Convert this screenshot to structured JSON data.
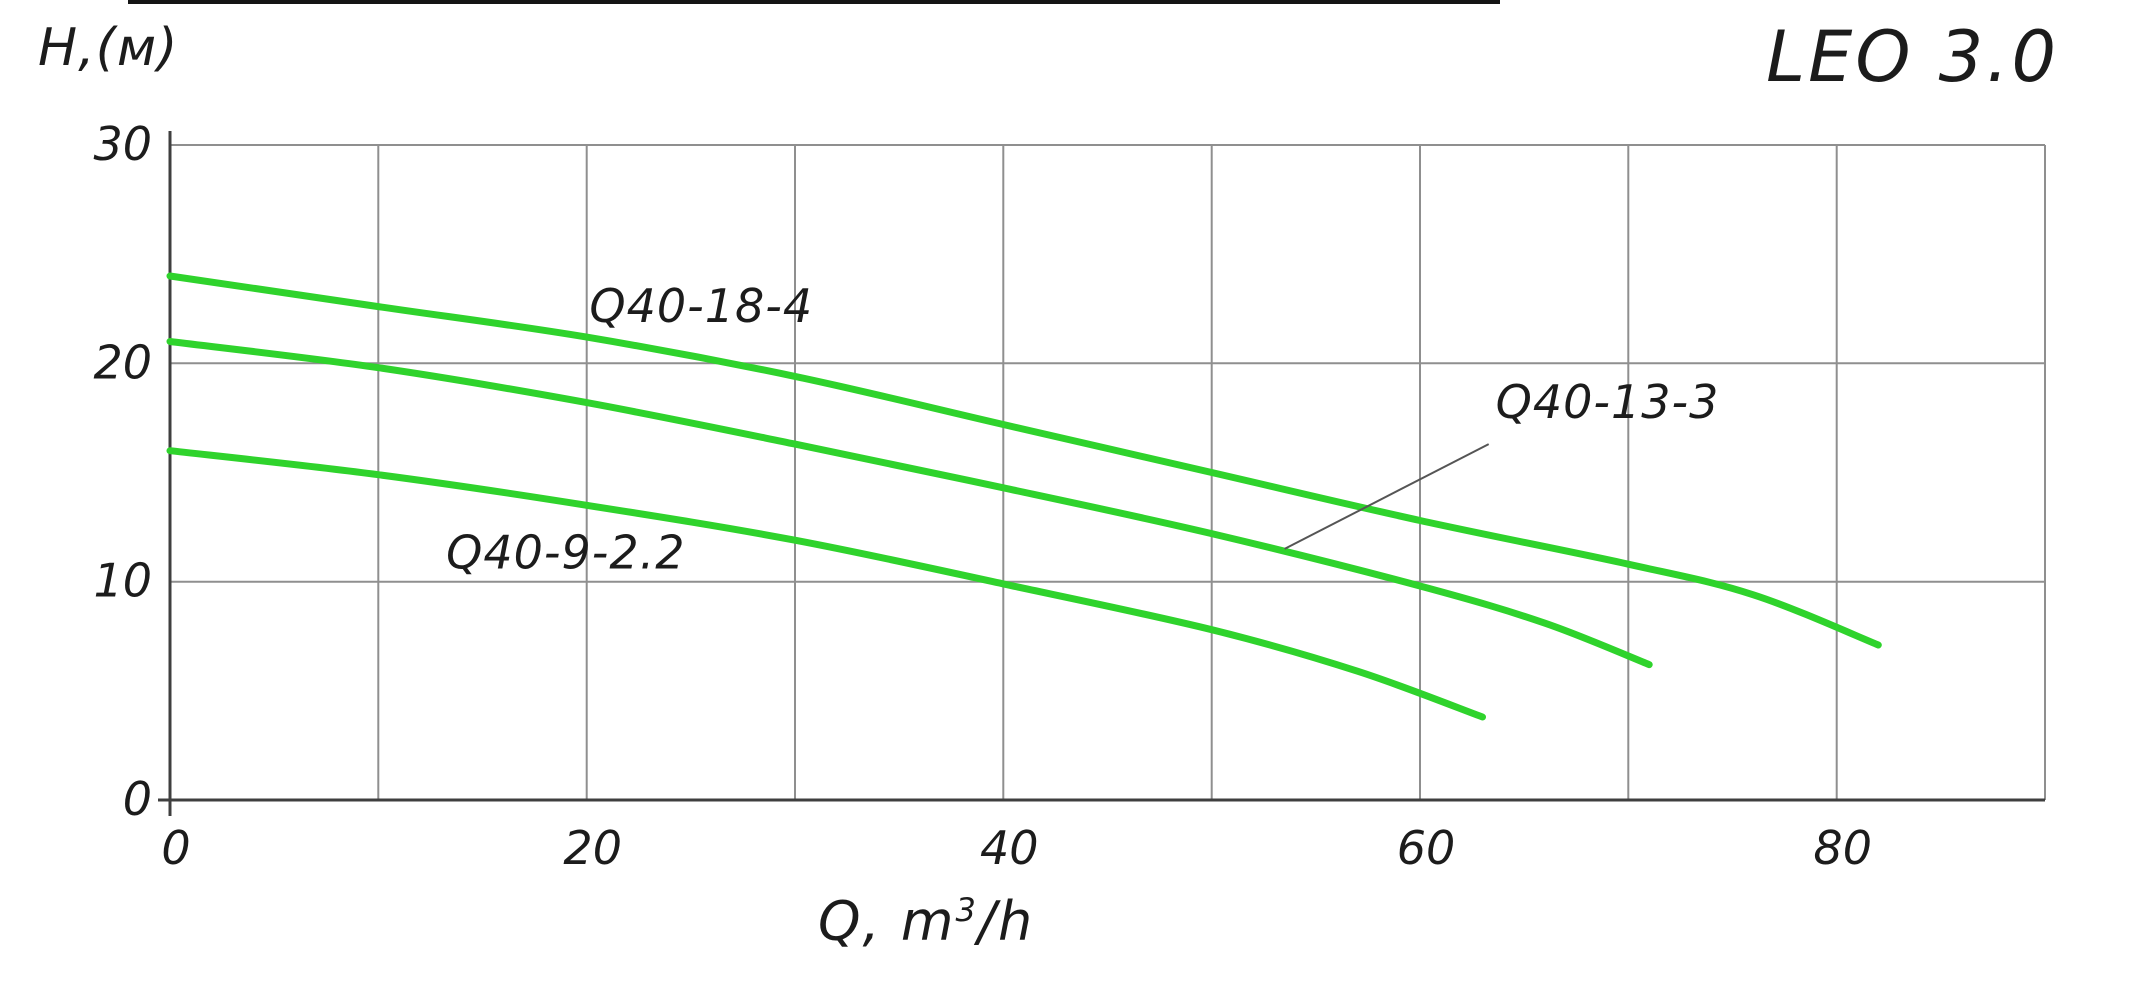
{
  "page": {
    "background": "#ffffff",
    "artifact_color": "#151515"
  },
  "chart_data": {
    "type": "line",
    "title": "LEO 3.0",
    "ylabel": "H,(м)",
    "xlabel_parts": {
      "base": "Q, m",
      "sup": "3",
      "rest": "/h"
    },
    "xlim": [
      0,
      90
    ],
    "ylim": [
      0,
      30
    ],
    "grid": true,
    "x_gridline_step": 10,
    "y_gridline_step": 10,
    "x_ticks": [
      {
        "value": 0,
        "label": "0"
      },
      {
        "value": 20,
        "label": "20"
      },
      {
        "value": 40,
        "label": "40"
      },
      {
        "value": 60,
        "label": "60"
      },
      {
        "value": 80,
        "label": "80"
      }
    ],
    "y_ticks": [
      {
        "value": 0,
        "label": "0"
      },
      {
        "value": 10,
        "label": "10"
      },
      {
        "value": 20,
        "label": "20"
      },
      {
        "value": 30,
        "label": "30"
      }
    ],
    "curve_color": "#2fd32c",
    "grid_color": "#8f8f8f",
    "axis_color": "#3f3f3f",
    "legend_position": "inline-labels",
    "series": [
      {
        "name": "Q40-18-4",
        "points": [
          [
            0,
            24
          ],
          [
            10,
            22.6
          ],
          [
            20,
            21.2
          ],
          [
            30,
            19.4
          ],
          [
            40,
            17.2
          ],
          [
            50,
            15.0
          ],
          [
            60,
            12.8
          ],
          [
            70,
            10.8
          ],
          [
            76,
            9.4
          ],
          [
            82,
            7.1
          ]
        ],
        "label": {
          "text": "Q40-18-4",
          "x": 25.5,
          "y": 21.9
        }
      },
      {
        "name": "Q40-13-3",
        "points": [
          [
            0,
            21
          ],
          [
            10,
            19.8
          ],
          [
            20,
            18.2
          ],
          [
            30,
            16.3
          ],
          [
            40,
            14.3
          ],
          [
            50,
            12.2
          ],
          [
            60,
            9.8
          ],
          [
            66,
            8.1
          ],
          [
            71,
            6.2
          ]
        ],
        "label": {
          "text": "Q40-13-3",
          "x": 69,
          "y": 17.5,
          "leader_from": [
            63.3,
            16.3
          ],
          "leader_to": [
            53.5,
            11.5
          ]
        }
      },
      {
        "name": "Q40-9-2.2",
        "points": [
          [
            0,
            16
          ],
          [
            10,
            14.9
          ],
          [
            20,
            13.5
          ],
          [
            30,
            11.9
          ],
          [
            40,
            9.9
          ],
          [
            50,
            7.8
          ],
          [
            57,
            5.9
          ],
          [
            63,
            3.8
          ]
        ],
        "label": {
          "text": "Q40-9-2.2",
          "x": 19,
          "y": 10.6
        }
      }
    ]
  }
}
